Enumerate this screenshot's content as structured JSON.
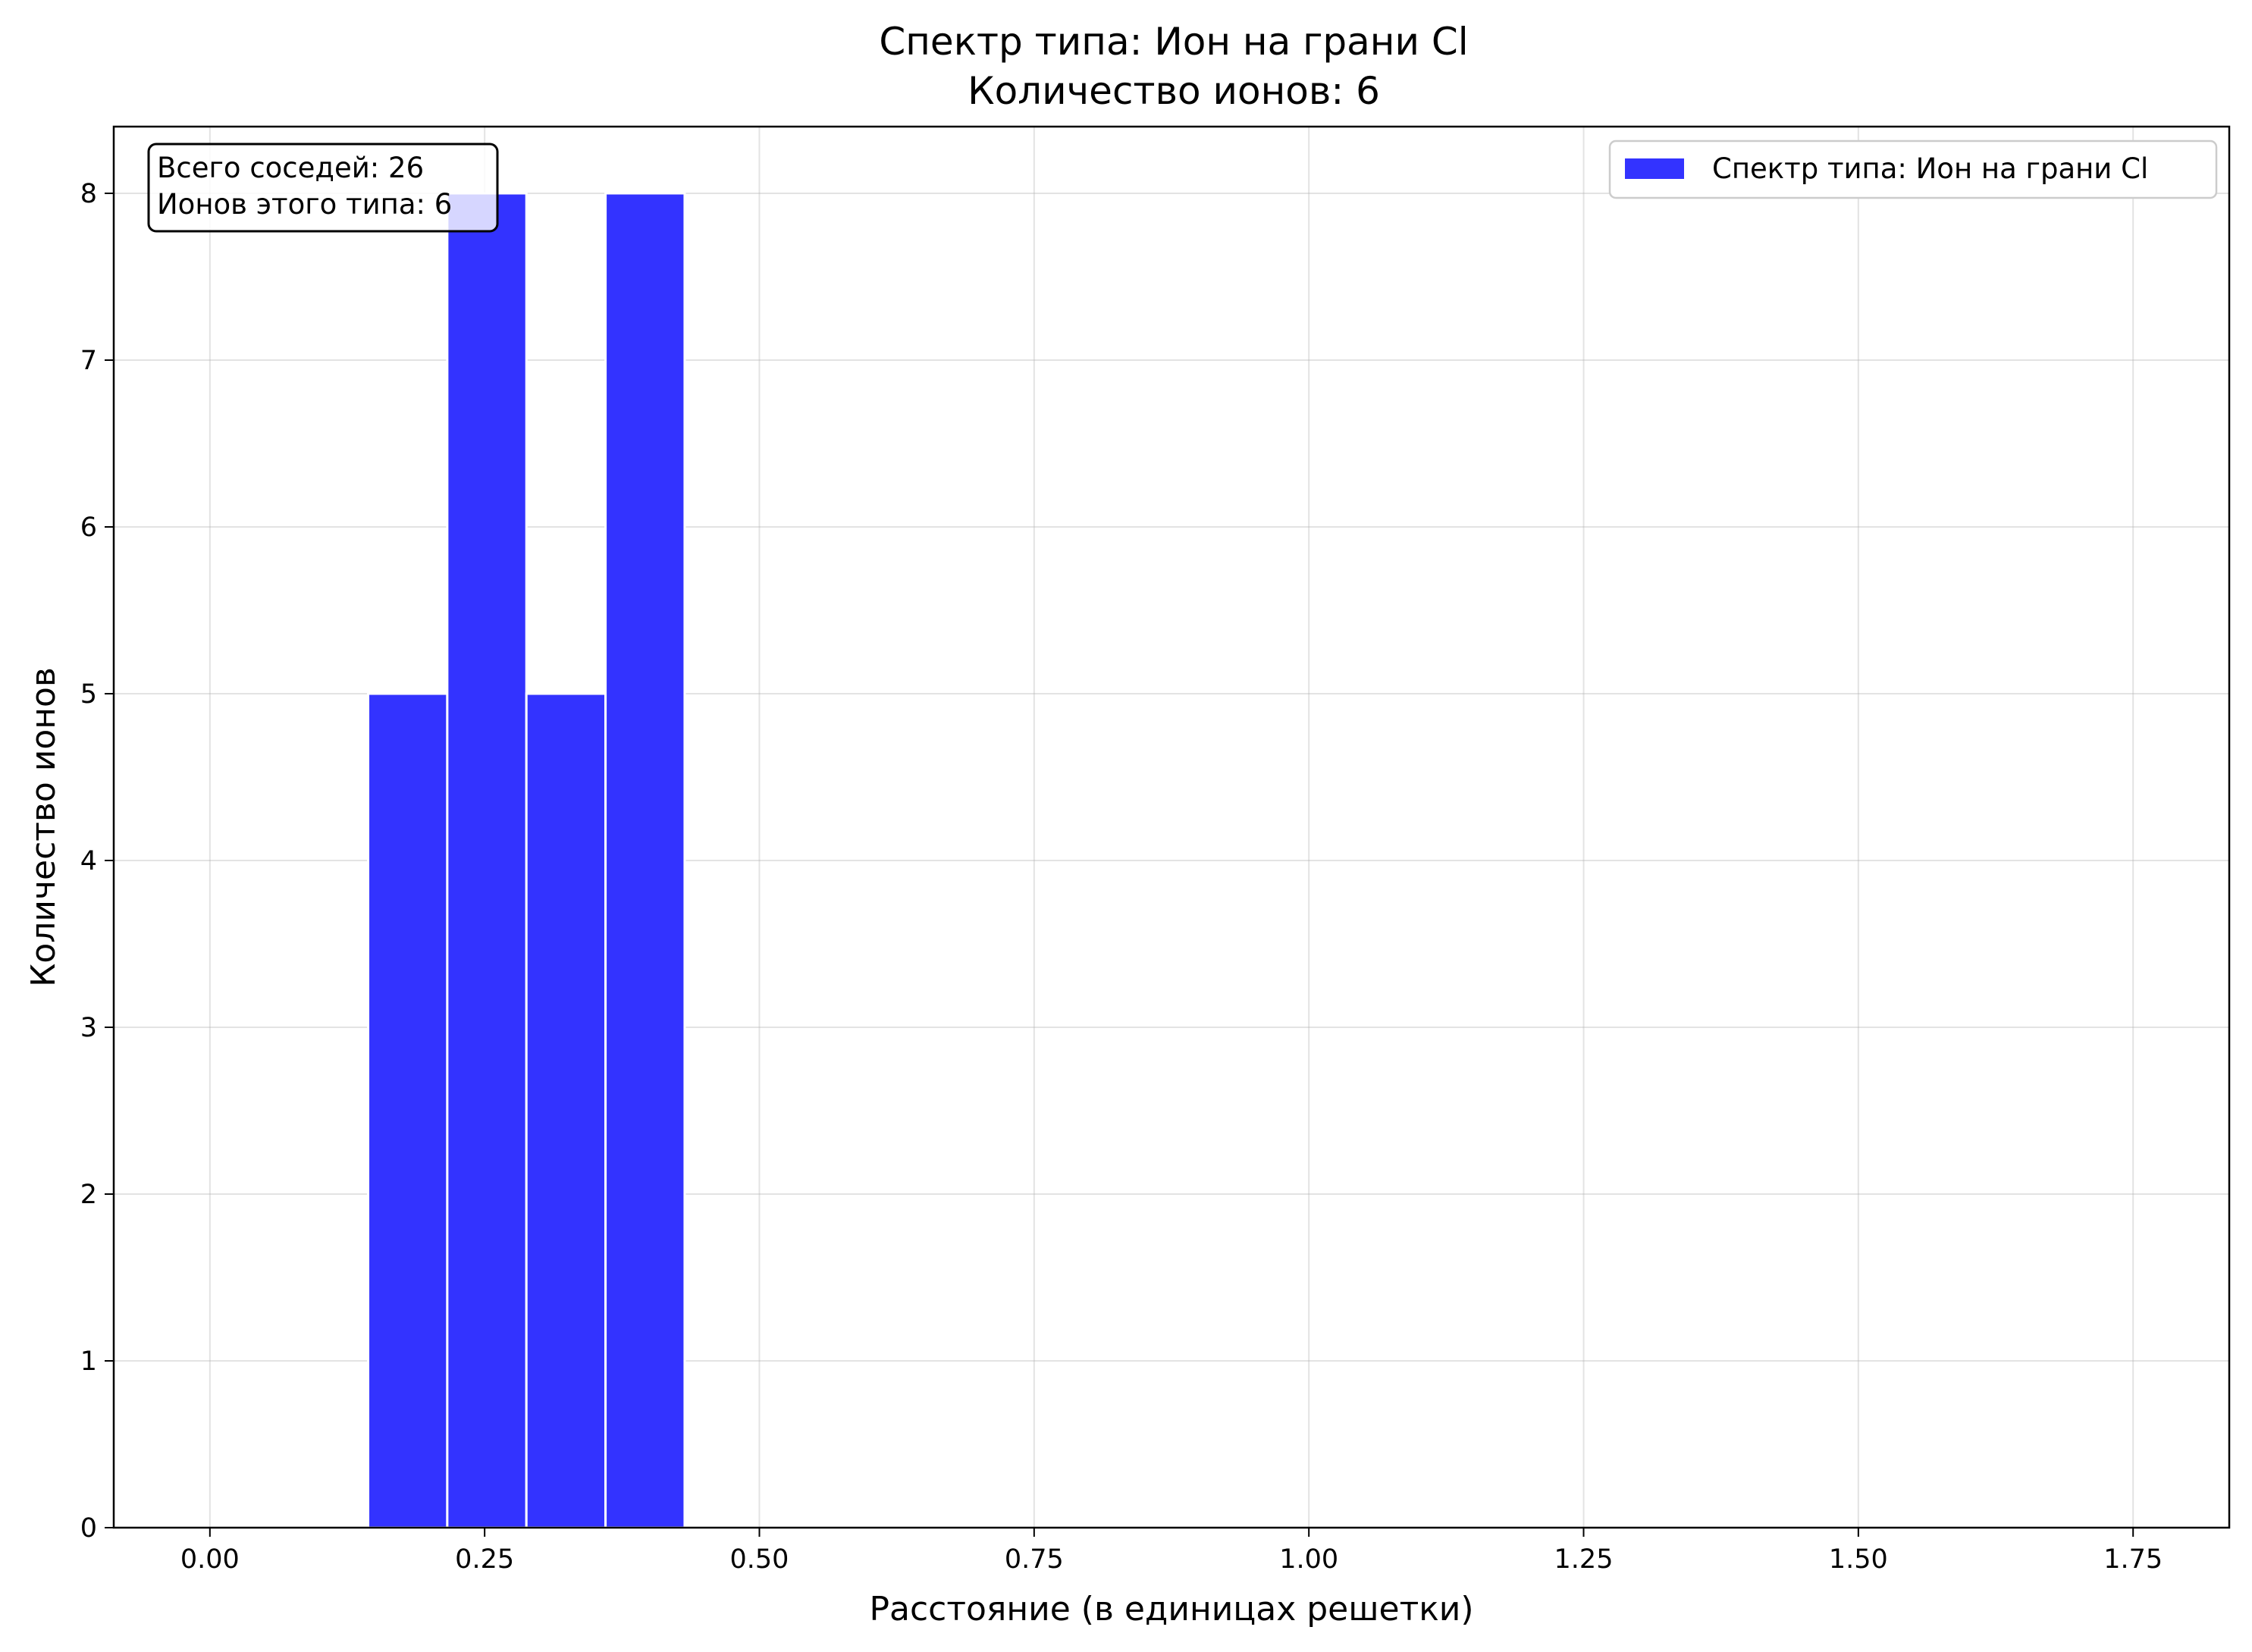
{
  "chart_data": {
    "type": "bar",
    "title": "Спектр типа: Ион на грани Cl",
    "subtitle": "Количество ионов: 6",
    "xlabel": "Расстояние (в единицах решетки)",
    "ylabel": "Количество ионов",
    "xlim": [
      -0.0875,
      1.8375
    ],
    "ylim": [
      0,
      8.4
    ],
    "x_ticks": [
      "0.00",
      "0.25",
      "0.50",
      "0.75",
      "1.00",
      "1.25",
      "1.50",
      "1.75"
    ],
    "y_ticks": [
      "0",
      "1",
      "2",
      "3",
      "4",
      "5",
      "6",
      "7",
      "8"
    ],
    "grid": true,
    "legend_position": "top-right",
    "bar_color": "#3333ff",
    "bar_edge_color": "#ffffff",
    "series": [
      {
        "name": "Спектр типа: Ион на грани Cl",
        "bins": [
          {
            "x0": 0.144,
            "x1": 0.216,
            "value": 5
          },
          {
            "x0": 0.216,
            "x1": 0.288,
            "value": 8
          },
          {
            "x0": 0.288,
            "x1": 0.36,
            "value": 5
          },
          {
            "x0": 0.36,
            "x1": 0.432,
            "value": 8
          }
        ]
      }
    ],
    "annotation": {
      "line1": "Всего соседей: 26",
      "line2": "Ионов этого типа: 6"
    }
  }
}
